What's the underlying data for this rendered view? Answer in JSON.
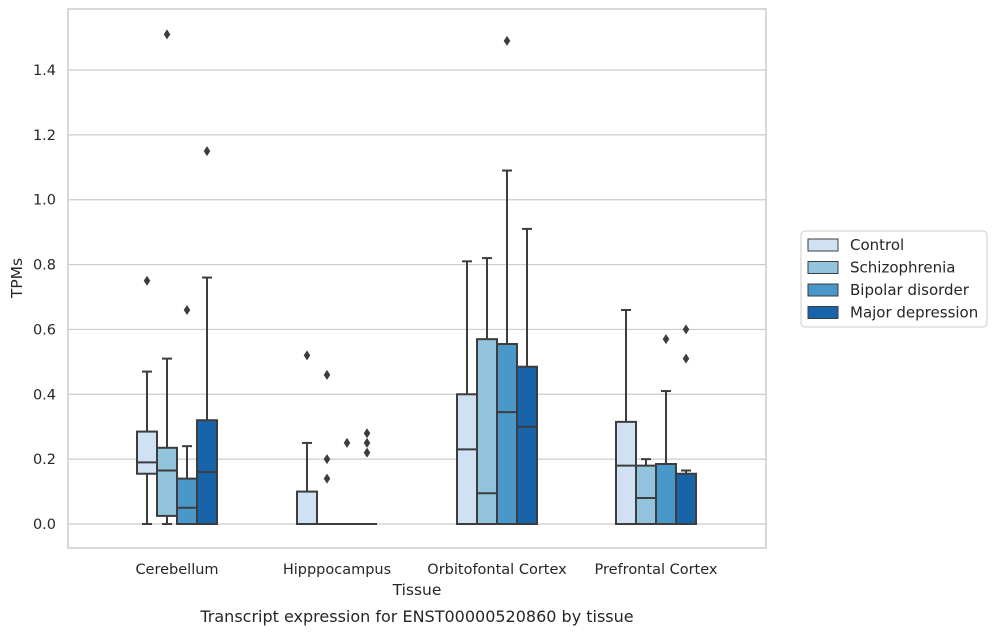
{
  "caption": "Transcript expression for ENST00000520860 by tissue",
  "chart_data": {
    "type": "box",
    "xlabel": "Tissue",
    "ylabel": "TPMs",
    "ylim": [
      -0.07,
      1.59
    ],
    "yticks": [
      "0.0",
      "0.2",
      "0.4",
      "0.6",
      "0.8",
      "1.0",
      "1.2",
      "1.4"
    ],
    "grid": "horizontal",
    "legend_position": "right",
    "categories": [
      "Cerebellum",
      "Hipppocampus",
      "Orbitofontal Cortex",
      "Prefrontal Cortex"
    ],
    "series": [
      {
        "name": "Control",
        "color": "#cfe1f2",
        "boxes": [
          {
            "min": 0.0,
            "q1": 0.155,
            "median": 0.19,
            "q3": 0.285,
            "max": 0.47,
            "outliers": [
              0.75
            ]
          },
          {
            "min": 0.0,
            "q1": 0.0,
            "median": 0.0,
            "q3": 0.1,
            "max": 0.25,
            "outliers": [
              0.52
            ]
          },
          {
            "min": 0.0,
            "q1": 0.0,
            "median": 0.23,
            "q3": 0.4,
            "max": 0.81,
            "outliers": []
          },
          {
            "min": 0.0,
            "q1": 0.0,
            "median": 0.18,
            "q3": 0.315,
            "max": 0.66,
            "outliers": []
          }
        ]
      },
      {
        "name": "Schizophrenia",
        "color": "#93c4de",
        "boxes": [
          {
            "min": 0.0,
            "q1": 0.025,
            "median": 0.165,
            "q3": 0.235,
            "max": 0.51,
            "outliers": [
              1.51
            ]
          },
          {
            "min": 0.0,
            "q1": 0.0,
            "median": 0.0,
            "q3": 0.0,
            "max": 0.0,
            "outliers": [
              0.14,
              0.2,
              0.46
            ]
          },
          {
            "min": 0.0,
            "q1": 0.0,
            "median": 0.095,
            "q3": 0.57,
            "max": 0.82,
            "outliers": []
          },
          {
            "min": 0.0,
            "q1": 0.0,
            "median": 0.08,
            "q3": 0.18,
            "max": 0.2,
            "outliers": []
          }
        ]
      },
      {
        "name": "Bipolar disorder",
        "color": "#4a98c9",
        "boxes": [
          {
            "min": 0.0,
            "q1": 0.0,
            "median": 0.05,
            "q3": 0.14,
            "max": 0.24,
            "outliers": [
              0.66
            ]
          },
          {
            "min": 0.0,
            "q1": 0.0,
            "median": 0.0,
            "q3": 0.0,
            "max": 0.0,
            "outliers": [
              0.25
            ]
          },
          {
            "min": 0.0,
            "q1": 0.0,
            "median": 0.345,
            "q3": 0.555,
            "max": 1.09,
            "outliers": [
              1.49
            ]
          },
          {
            "min": 0.0,
            "q1": 0.0,
            "median": 0.0,
            "q3": 0.185,
            "max": 0.41,
            "outliers": [
              0.57
            ]
          }
        ]
      },
      {
        "name": "Major depression",
        "color": "#1764ab",
        "boxes": [
          {
            "min": 0.0,
            "q1": 0.0,
            "median": 0.16,
            "q3": 0.32,
            "max": 0.76,
            "outliers": [
              1.15
            ]
          },
          {
            "min": 0.0,
            "q1": 0.0,
            "median": 0.0,
            "q3": 0.0,
            "max": 0.0,
            "outliers": [
              0.22,
              0.25,
              0.28
            ]
          },
          {
            "min": 0.0,
            "q1": 0.0,
            "median": 0.3,
            "q3": 0.485,
            "max": 0.91,
            "outliers": []
          },
          {
            "min": 0.0,
            "q1": 0.0,
            "median": 0.0,
            "q3": 0.155,
            "max": 0.165,
            "outliers": [
              0.51,
              0.6
            ]
          }
        ]
      }
    ]
  }
}
